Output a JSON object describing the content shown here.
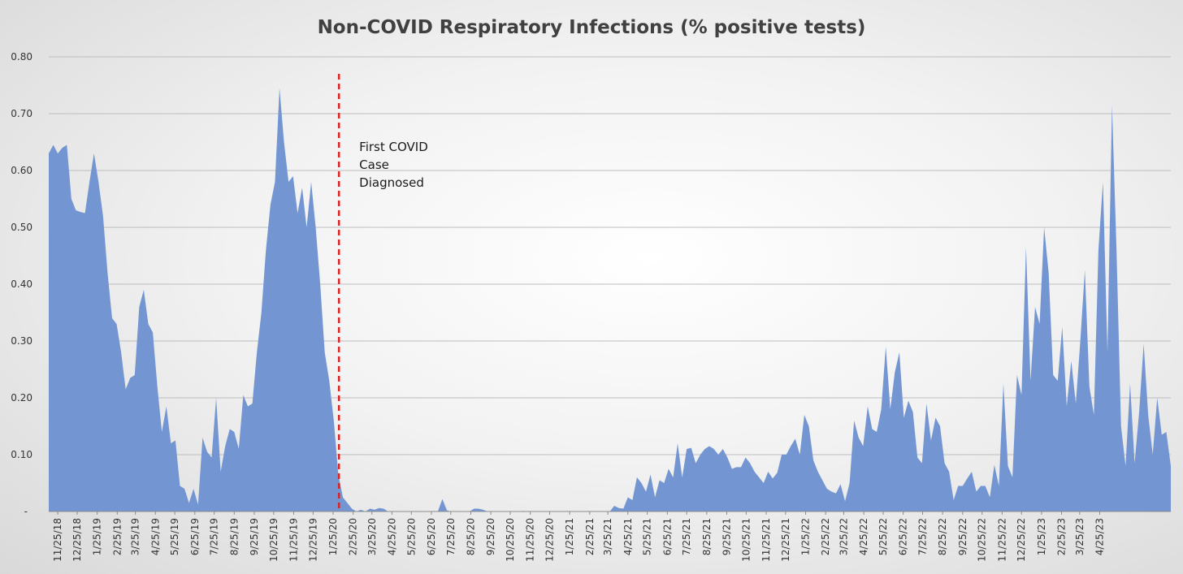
{
  "chart_data": {
    "type": "area",
    "title": "Non-COVID Respiratory Infections (% positive tests)",
    "xlabel": "",
    "ylabel": "",
    "ylim": [
      0,
      0.8
    ],
    "y_ticks": [
      "-",
      "0.10",
      "0.20",
      "0.30",
      "0.40",
      "0.50",
      "0.60",
      "0.70",
      "0.80"
    ],
    "grid": true,
    "fill_color": "#7396d2",
    "marker_color": "#e02020",
    "x_tick_labels": [
      "11/25/18",
      "12/25/18",
      "1/25/19",
      "2/25/19",
      "3/25/19",
      "4/25/19",
      "5/25/19",
      "6/25/19",
      "7/25/19",
      "8/25/19",
      "9/25/19",
      "10/25/19",
      "11/25/19",
      "12/25/19",
      "1/25/20",
      "2/25/20",
      "3/25/20",
      "4/25/20",
      "5/25/20",
      "6/25/20",
      "7/25/20",
      "8/25/20",
      "9/25/20",
      "10/25/20",
      "11/25/20",
      "12/25/20",
      "1/25/21",
      "2/25/21",
      "3/25/21",
      "4/25/21",
      "5/25/21",
      "6/25/21",
      "7/25/21",
      "8/25/21",
      "9/25/21",
      "10/25/21",
      "11/25/21",
      "12/25/21",
      "1/25/22",
      "2/25/22",
      "3/25/22",
      "4/25/22",
      "5/25/22",
      "6/25/22",
      "7/25/22",
      "8/25/22",
      "9/25/22",
      "10/25/22",
      "11/25/22",
      "12/25/22",
      "1/25/23",
      "2/25/23",
      "3/25/23",
      "4/25/23"
    ],
    "first_week": "11/11/18",
    "week_interval_days": 7,
    "values": [
      0.63,
      0.645,
      0.63,
      0.64,
      0.645,
      0.55,
      0.53,
      0.527,
      0.525,
      0.58,
      0.63,
      0.58,
      0.52,
      0.42,
      0.34,
      0.33,
      0.28,
      0.215,
      0.235,
      0.24,
      0.36,
      0.39,
      0.33,
      0.315,
      0.22,
      0.14,
      0.185,
      0.12,
      0.125,
      0.045,
      0.04,
      0.015,
      0.04,
      0.012,
      0.13,
      0.105,
      0.095,
      0.2,
      0.07,
      0.115,
      0.145,
      0.14,
      0.11,
      0.205,
      0.185,
      0.19,
      0.28,
      0.35,
      0.46,
      0.54,
      0.58,
      0.745,
      0.65,
      0.58,
      0.59,
      0.525,
      0.57,
      0.5,
      0.58,
      0.5,
      0.4,
      0.28,
      0.23,
      0.16,
      0.065,
      0.025,
      0.015,
      0.005,
      0,
      0.003,
      0,
      0.005,
      0.003,
      0.006,
      0.005,
      0,
      0,
      0,
      0,
      0,
      0,
      0,
      0,
      0,
      0,
      0,
      0,
      0.022,
      0.002,
      0,
      0,
      0,
      0,
      0,
      0.005,
      0.005,
      0.003,
      0,
      0,
      0,
      0,
      0,
      0,
      0,
      0,
      0.001,
      0,
      0,
      0,
      0,
      0,
      0,
      0,
      0,
      0,
      0,
      0,
      0,
      0,
      0,
      0,
      0,
      0,
      0,
      0,
      0.01,
      0.006,
      0.005,
      0.025,
      0.02,
      0.06,
      0.05,
      0.035,
      0.065,
      0.025,
      0.055,
      0.05,
      0.075,
      0.06,
      0.12,
      0.06,
      0.11,
      0.112,
      0.085,
      0.1,
      0.11,
      0.115,
      0.11,
      0.1,
      0.11,
      0.095,
      0.075,
      0.078,
      0.078,
      0.095,
      0.085,
      0.07,
      0.06,
      0.05,
      0.07,
      0.058,
      0.068,
      0.1,
      0.1,
      0.115,
      0.128,
      0.1,
      0.17,
      0.15,
      0.09,
      0.07,
      0.055,
      0.04,
      0.035,
      0.032,
      0.048,
      0.018,
      0.05,
      0.16,
      0.13,
      0.115,
      0.185,
      0.145,
      0.14,
      0.18,
      0.29,
      0.18,
      0.245,
      0.28,
      0.165,
      0.195,
      0.175,
      0.095,
      0.085,
      0.19,
      0.125,
      0.165,
      0.15,
      0.085,
      0.07,
      0.02,
      0.045,
      0.045,
      0.058,
      0.07,
      0.035,
      0.045,
      0.045,
      0.025,
      0.082,
      0.045,
      0.225,
      0.08,
      0.06,
      0.24,
      0.205,
      0.465,
      0.23,
      0.36,
      0.33,
      0.5,
      0.42,
      0.24,
      0.23,
      0.325,
      0.185,
      0.265,
      0.19,
      0.3,
      0.425,
      0.22,
      0.17,
      0.46,
      0.58,
      0.28,
      0.715,
      0.46,
      0.15,
      0.08,
      0.225,
      0.085,
      0.175,
      0.295,
      0.17,
      0.1,
      0.2,
      0.135,
      0.14,
      0.08
    ],
    "annotations": [
      {
        "text_lines": [
          "First COVID",
          "Case",
          "Diagnosed"
        ],
        "marker_at": "2/3/20"
      }
    ]
  }
}
